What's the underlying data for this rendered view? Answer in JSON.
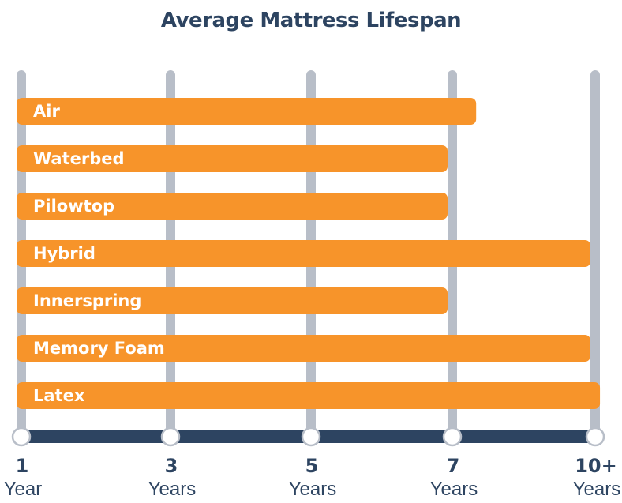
{
  "chart_data": {
    "type": "bar",
    "orientation": "horizontal",
    "title": "Average Mattress Lifespan",
    "categories": [
      "Air",
      "Waterbed",
      "Pilowtop",
      "Hybrid",
      "Innerspring",
      "Memory Foam",
      "Latex"
    ],
    "values": [
      7.6,
      7,
      7,
      10,
      7,
      10,
      10.2
    ],
    "ticks": [
      {
        "value": 1,
        "number": "1",
        "unit": "Year"
      },
      {
        "value": 3,
        "number": "3",
        "unit": "Years"
      },
      {
        "value": 5,
        "number": "5",
        "unit": "Years"
      },
      {
        "value": 7,
        "number": "7",
        "unit": "Years"
      },
      {
        "value": 10,
        "number": "10+",
        "unit": "Years"
      }
    ],
    "xlim": [
      1,
      10
    ],
    "grid": true,
    "colors": {
      "bar": "#f7942a",
      "gridline": "#b8bec8",
      "axis": "#2d4461",
      "text": "#2d4461"
    }
  }
}
